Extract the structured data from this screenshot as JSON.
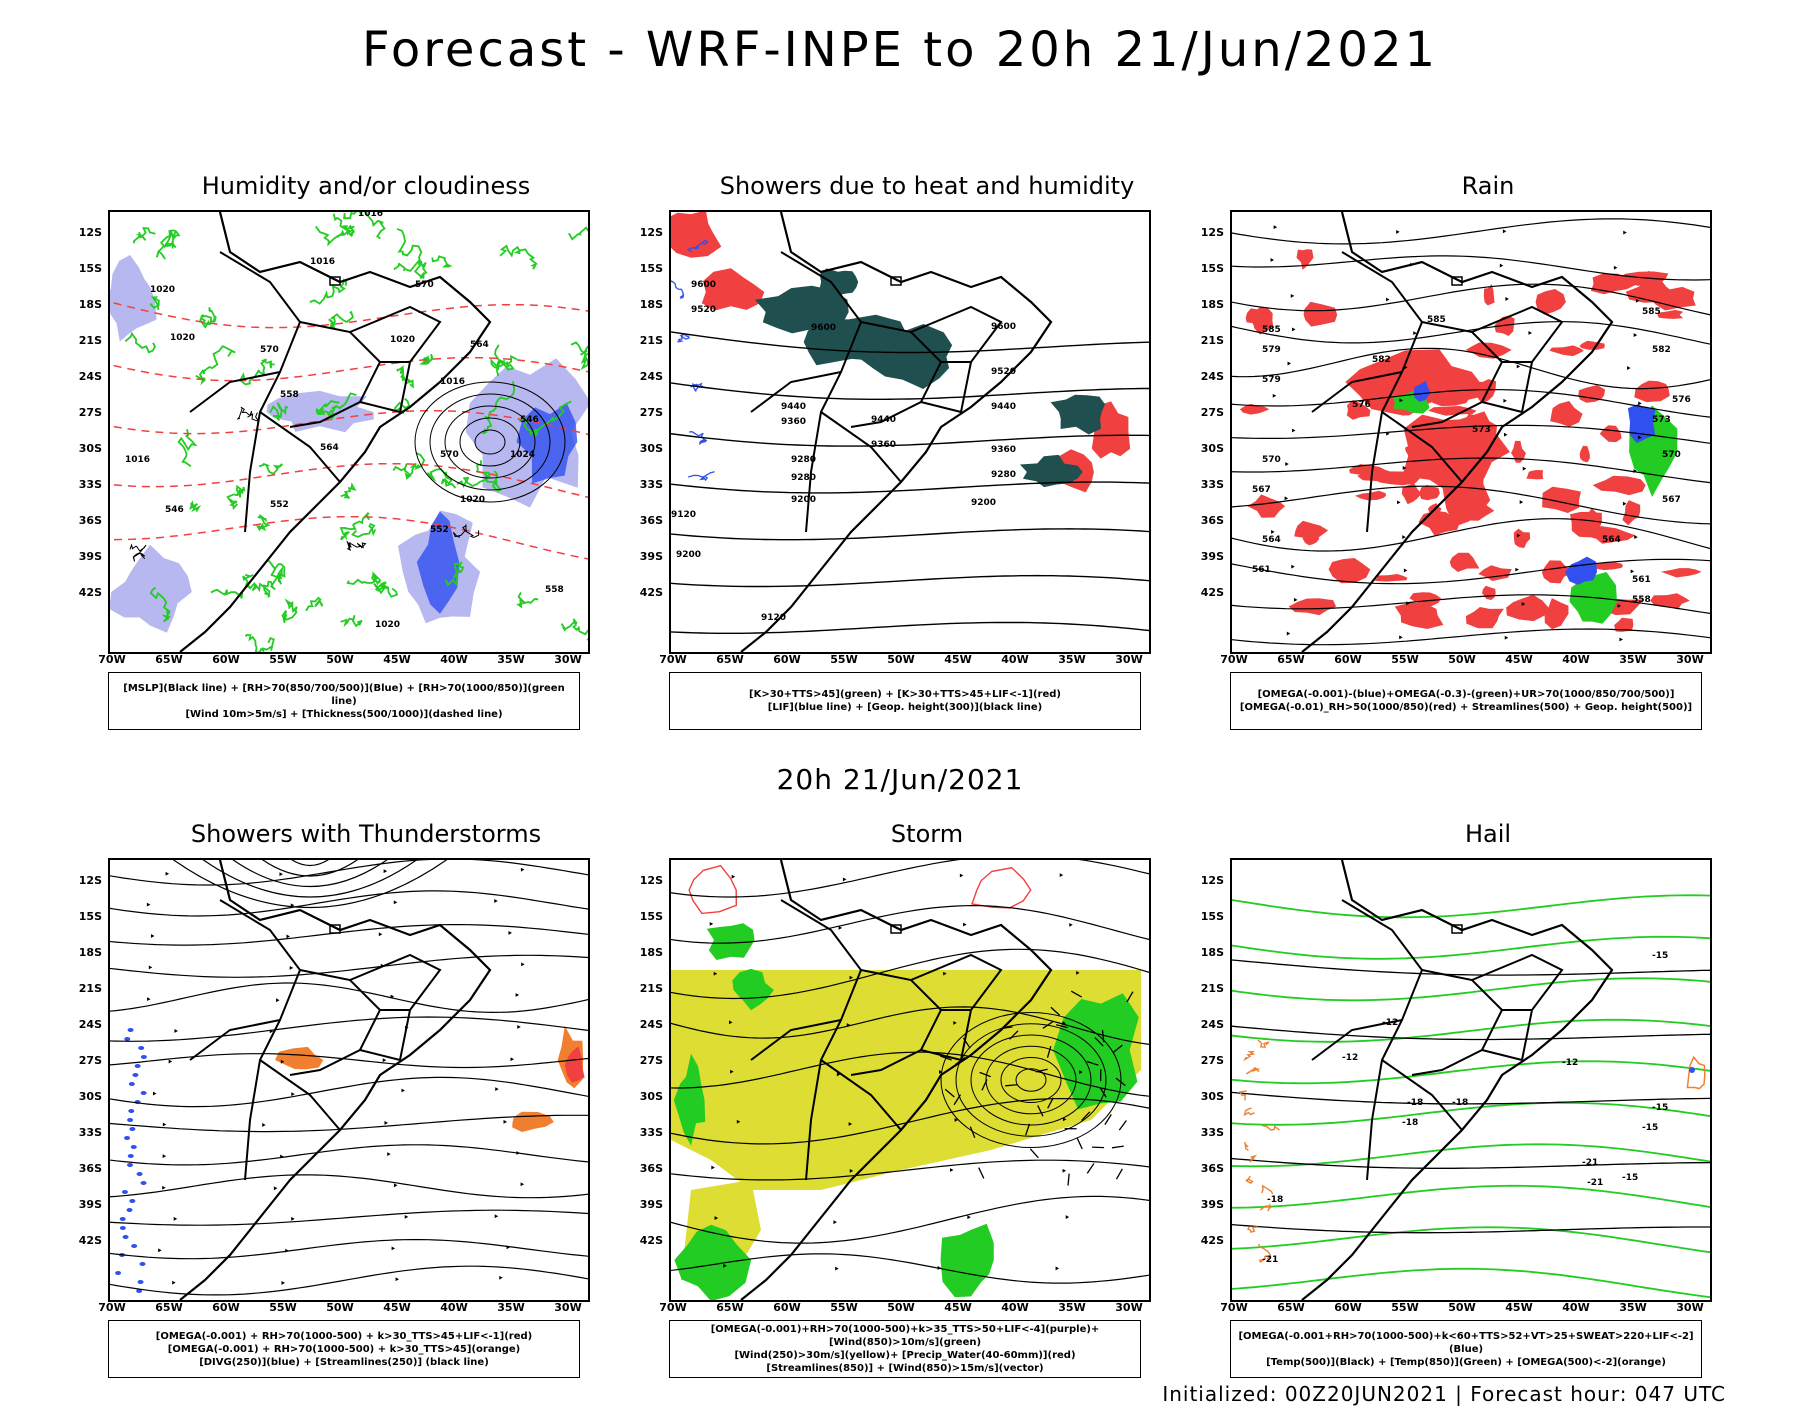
{
  "title": "Forecast - WRF-INPE to 20h 21/Jun/2021",
  "subtitle": "20h 21/Jun/2021",
  "footer": "Initialized: 00Z20JUN2021 | Forecast hour: 047 UTC",
  "axes": {
    "lat_labels": [
      "12S",
      "15S",
      "18S",
      "21S",
      "24S",
      "27S",
      "30S",
      "33S",
      "36S",
      "39S",
      "42S"
    ],
    "lon_labels": [
      "70W",
      "65W",
      "60W",
      "55W",
      "50W",
      "45W",
      "40W",
      "35W",
      "30W"
    ]
  },
  "colors": {
    "rain": "#f04040",
    "green": "#22cc22",
    "blue": "#3050f0",
    "lavender": "#b8b8f0",
    "teal": "#1f4f4f",
    "yellow": "#dddd33",
    "orange": "#f08030"
  },
  "panels": [
    {
      "title": "Humidity and/or cloudiness",
      "legend": [
        "[MSLP](Black line) + [RH>70(850/700/500)](Blue) + [RH>70(1000/850)](green line)",
        "[Wind 10m>5m/s] + [Thickness(500/1000)](dashed line)"
      ],
      "contour_labels": [
        "1016",
        "1016",
        "1020",
        "1020",
        "1016",
        "1020",
        "1024",
        "1020",
        "1016",
        "1020",
        "570",
        "570",
        "564",
        "558",
        "552",
        "546",
        "552",
        "546",
        "564",
        "570",
        "558"
      ]
    },
    {
      "title": "Showers due to heat and humidity",
      "legend": [
        "[K>30+TTS>45](green) + [K>30+TTS>45+LIF<-1](red)",
        "[LIF](blue line) + [Geop. height(300)](black line)"
      ],
      "contour_labels": [
        "9600",
        "9600",
        "9600",
        "9520",
        "9520",
        "9440",
        "9440",
        "9440",
        "9360",
        "9360",
        "9360",
        "9280",
        "9280",
        "9280",
        "9200",
        "9200",
        "9120",
        "9120",
        "9200"
      ]
    },
    {
      "title": "Rain",
      "legend": [
        "[OMEGA(-0.001)-(blue)+OMEGA(-0.3)-(green)+UR>70(1000/850/700/500)]",
        "[OMEGA(-0.01)_RH>50(1000/850)(red) + Streamlines(500) + Geop. height(500)]"
      ],
      "contour_labels": [
        "585",
        "585",
        "582",
        "579",
        "576",
        "573",
        "570",
        "567",
        "564",
        "561",
        "558",
        "585",
        "582",
        "579",
        "576",
        "573",
        "570",
        "567",
        "564",
        "561"
      ]
    },
    {
      "title": "Showers with Thunderstorms",
      "legend": [
        "[OMEGA(-0.001) + RH>70(1000-500) + k>30_TTS>45+LIF<-1](red)",
        "[OMEGA(-0.001) + RH>70(1000-500) + k>30_TTS>45](orange)",
        "[DIVG(250)](blue) + [Streamlines(250)] (black line)"
      ],
      "contour_labels": []
    },
    {
      "title": "Storm",
      "legend": [
        "[OMEGA(-0.001)+RH>70(1000-500)+k>35_TTS>50+LIF<-4](purple)+[Wind(850)>10m/s](green)",
        "[Wind(250)>30m/s](yellow)+ [Precip_Water(40-60mm)](red)",
        "[Streamlines(850)] + [Wind(850)>15m/s](vector)"
      ],
      "contour_labels": []
    },
    {
      "title": "Hail",
      "legend": [
        "[OMEGA(-0.001+RH>70(1000-500)+k<60+TTS>52+VT>25+SWEAT>220+LIF<-2](Blue)",
        "[Temp(500)](Black) + [Temp(850)](Green) + [OMEGA(500)<-2](orange)"
      ],
      "contour_labels": [
        "-15",
        "-12",
        "-12",
        "-18",
        "-15",
        "-18",
        "-18",
        "-21",
        "-15",
        "-21",
        "-18",
        "-12",
        "-15",
        "-21"
      ]
    }
  ]
}
